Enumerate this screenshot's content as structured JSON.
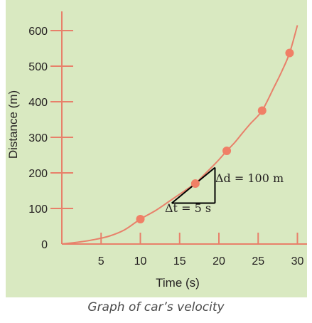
{
  "chart_data": {
    "type": "scatter",
    "xlabel": "Time (s)",
    "ylabel": "Distance (m)",
    "xlim": [
      0,
      30
    ],
    "ylim": [
      0,
      600
    ],
    "x_ticks": [
      5,
      10,
      15,
      20,
      25,
      30
    ],
    "y_ticks": [
      0,
      100,
      200,
      300,
      400,
      500,
      600
    ],
    "grid": false,
    "points": [
      {
        "x": 10,
        "y": 70
      },
      {
        "x": 17,
        "y": 170
      },
      {
        "x": 21,
        "y": 262
      },
      {
        "x": 25.5,
        "y": 375
      },
      {
        "x": 29,
        "y": 537
      }
    ],
    "curve": [
      {
        "x": 0,
        "y": 0
      },
      {
        "x": 2,
        "y": 5
      },
      {
        "x": 4,
        "y": 12
      },
      {
        "x": 6,
        "y": 22
      },
      {
        "x": 8,
        "y": 40
      },
      {
        "x": 10,
        "y": 70
      },
      {
        "x": 12,
        "y": 95
      },
      {
        "x": 14,
        "y": 125
      },
      {
        "x": 16,
        "y": 155
      },
      {
        "x": 17,
        "y": 170
      },
      {
        "x": 18,
        "y": 192
      },
      {
        "x": 19,
        "y": 214
      },
      {
        "x": 20,
        "y": 237
      },
      {
        "x": 21,
        "y": 262
      },
      {
        "x": 22,
        "y": 285
      },
      {
        "x": 23,
        "y": 312
      },
      {
        "x": 24,
        "y": 338
      },
      {
        "x": 25.5,
        "y": 375
      },
      {
        "x": 27,
        "y": 440
      },
      {
        "x": 28,
        "y": 485
      },
      {
        "x": 29,
        "y": 537
      },
      {
        "x": 30,
        "y": 615
      }
    ],
    "triangle": {
      "start": {
        "x": 14,
        "y": 115
      },
      "end": {
        "x": 19.5,
        "y": 215
      },
      "dx_label": "Δt = 5 s",
      "dy_label": "Δd = 100 m"
    },
    "caption": "Graph of car’s velocity"
  },
  "colors": {
    "background": "#d9e9c1",
    "axis": "#e8806a",
    "curve": "#e8806a",
    "point": "#f07f66",
    "triangle": "#000000"
  }
}
